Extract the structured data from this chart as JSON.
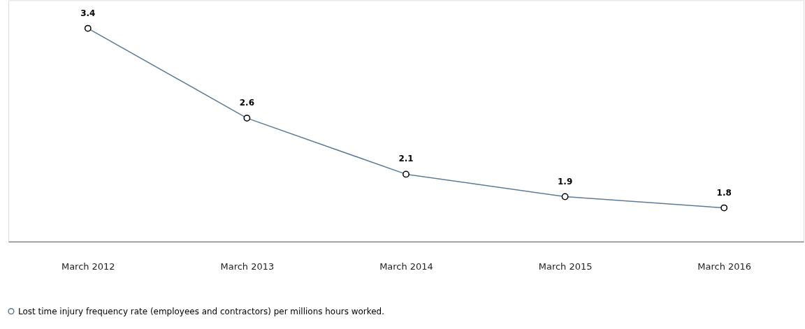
{
  "chart_data": {
    "type": "line",
    "categories": [
      "March 2012",
      "March 2013",
      "March 2014",
      "March 2015",
      "March 2016"
    ],
    "series": [
      {
        "name": "Lost time injury frequency rate (employees and contractors) per millions hours worked.",
        "color": "#5b7b96",
        "values": [
          3.4,
          2.6,
          2.1,
          1.9,
          1.8
        ]
      }
    ],
    "ylim": [
      1.5,
      3.65
    ],
    "tick_labels": "x",
    "data_labels": true,
    "marker": "circle",
    "line_style": "solid",
    "grid": false,
    "legend": "bottom left"
  }
}
